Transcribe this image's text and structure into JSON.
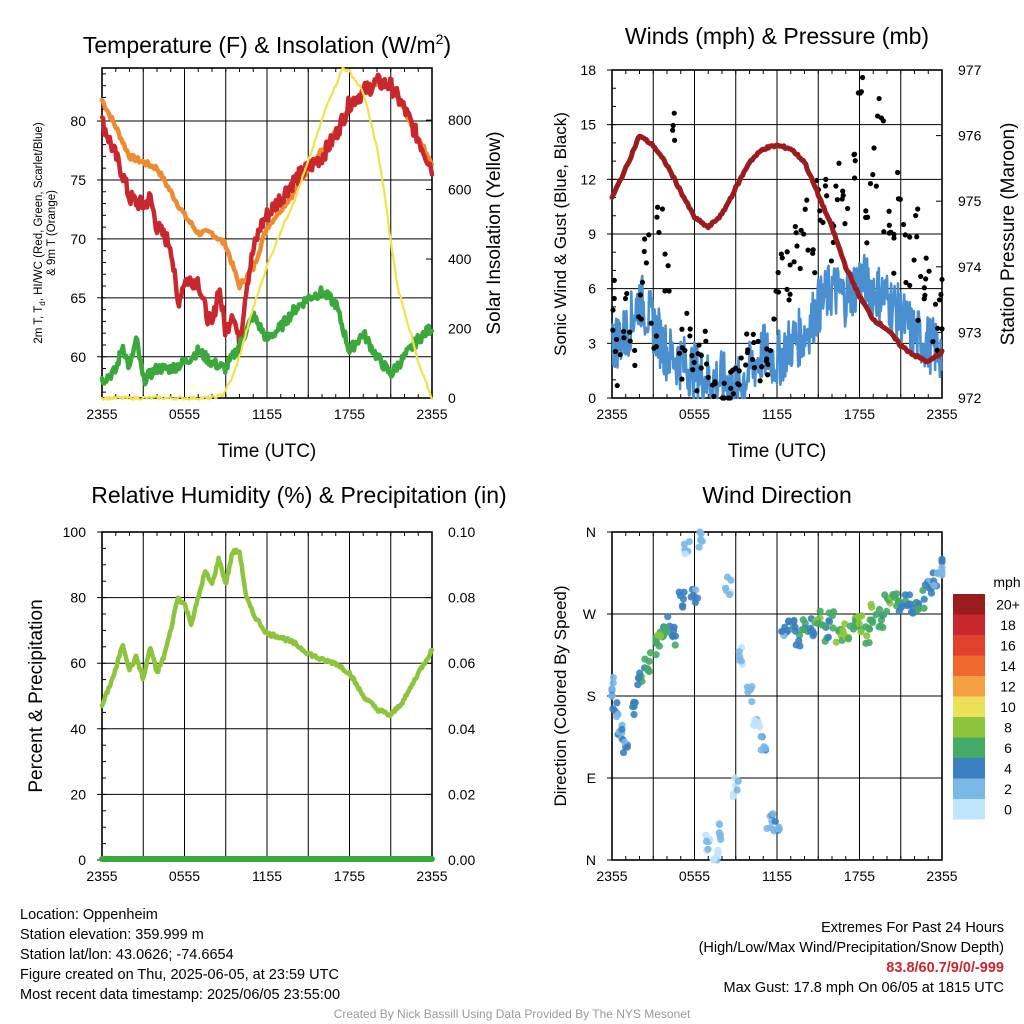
{
  "chart_data": [
    {
      "type": "line",
      "title": "Temperature (F) & Insolation (W/m",
      "title_superscript": "2",
      "title_suffix": ")",
      "xlabel": "Time (UTC)",
      "ylabel_left_lines": [
        "2m T, T",
        "d",
        ", HI/WC (Red, Green, Scarlet/Blue)",
        "& 9m T (Orange)"
      ],
      "ylabel_right": "Solar Insolation (Yellow)",
      "x_ticks": [
        "2355",
        "0555",
        "1155",
        "1755",
        "2355"
      ],
      "x_range_hours": [
        0,
        24
      ],
      "ylim_left": [
        56.5,
        84.5
      ],
      "y_ticks_left": [
        60,
        65,
        70,
        75,
        80
      ],
      "ylim_right": [
        0,
        950
      ],
      "y_ticks_right": [
        0,
        200,
        400,
        600,
        800
      ],
      "grid": true,
      "series": [
        {
          "name": "9m T",
          "color": "#f08a30",
          "axis": "left",
          "x": [
            0,
            1,
            2,
            3,
            4,
            5,
            6,
            7,
            8,
            9,
            10,
            11,
            12,
            13,
            14,
            15,
            16,
            17,
            18,
            19,
            20,
            21,
            22,
            23,
            24
          ],
          "values": [
            81.8,
            79.5,
            77.0,
            76.5,
            76.0,
            74.0,
            72.0,
            70.5,
            70.5,
            69.5,
            66.0,
            67.5,
            71.0,
            72.5,
            74.0,
            76.0,
            77.5,
            79.0,
            81.0,
            82.5,
            83.3,
            83.1,
            81.0,
            78.5,
            76.5
          ]
        },
        {
          "name": "2m T",
          "color": "#c8282d",
          "axis": "left",
          "x": [
            0,
            1,
            1.5,
            2,
            3,
            3.5,
            4,
            5,
            5.5,
            6,
            7,
            7.5,
            8,
            8.5,
            9,
            9.5,
            10,
            10.5,
            11,
            11.5,
            12,
            13,
            14,
            15,
            16,
            17,
            18,
            19,
            20,
            21,
            22,
            23,
            24
          ],
          "values": [
            80.0,
            77.0,
            75.5,
            73.5,
            72.8,
            73.5,
            71.0,
            69.5,
            64.5,
            66.5,
            66.5,
            64.0,
            62.5,
            66.0,
            62.0,
            64.0,
            61.0,
            66.0,
            69.0,
            71.0,
            72.0,
            73.5,
            75.0,
            76.0,
            77.0,
            78.8,
            81.5,
            82.5,
            83.3,
            83.0,
            81.0,
            78.5,
            76.0
          ]
        },
        {
          "name": "Dewpoint",
          "color": "#3aa83a",
          "axis": "left",
          "x": [
            0,
            1,
            1.5,
            2,
            2.5,
            3,
            4,
            5,
            6,
            7,
            8,
            9,
            10,
            11,
            12,
            13,
            14,
            15,
            16,
            17,
            18,
            19,
            20,
            21,
            22,
            23,
            24
          ],
          "values": [
            58.0,
            58.8,
            61.0,
            59.0,
            61.5,
            58.0,
            59.0,
            59.0,
            59.5,
            60.5,
            59.5,
            59.0,
            61.0,
            63.5,
            61.5,
            62.5,
            64.0,
            65.0,
            65.5,
            64.5,
            60.5,
            62.0,
            60.0,
            58.5,
            60.0,
            61.5,
            62.5
          ]
        },
        {
          "name": "Solar Insolation",
          "color": "#f3e14a",
          "axis": "right",
          "x": [
            0,
            2,
            4,
            6,
            8,
            8.8,
            9.5,
            10,
            11,
            12,
            13,
            14,
            15,
            16,
            16.5,
            17,
            17.5,
            18,
            19,
            19.5,
            20,
            20.5,
            21,
            21.5,
            22,
            22.5,
            23,
            24
          ],
          "values": [
            0,
            0,
            0,
            0,
            0,
            10,
            60,
            120,
            260,
            380,
            480,
            570,
            680,
            800,
            860,
            900,
            950,
            940,
            880,
            800,
            720,
            600,
            450,
            320,
            250,
            180,
            100,
            0
          ]
        }
      ]
    },
    {
      "type": "scatter",
      "title": "Winds (mph) & Pressure (mb)",
      "xlabel": "Time (UTC)",
      "ylabel_left": "Sonic Wind & Gust (Blue, Black)",
      "ylabel_right": "Station Pressure (Maroon)",
      "x_ticks": [
        "2355",
        "0555",
        "1155",
        "1755",
        "2355"
      ],
      "x_range_hours": [
        0,
        24
      ],
      "ylim_left": [
        0,
        18
      ],
      "y_ticks_left": [
        0,
        3,
        6,
        9,
        12,
        15,
        18
      ],
      "ylim_right": [
        972,
        977
      ],
      "y_ticks_right": [
        972,
        973,
        974,
        975,
        976,
        977
      ],
      "grid": true,
      "series": [
        {
          "name": "Sonic Wind",
          "color": "#4a90d0",
          "axis": "left",
          "x": [
            0,
            1,
            2,
            3,
            4,
            5,
            6,
            7,
            8,
            9,
            10,
            11,
            12,
            13,
            14,
            15,
            16,
            17,
            18,
            19,
            20,
            21,
            22,
            23,
            24
          ],
          "values": [
            3.0,
            3.5,
            5.5,
            4.0,
            2.5,
            2.0,
            1.5,
            1.0,
            1.0,
            0.5,
            1.5,
            2.5,
            2.0,
            3.0,
            3.5,
            5.0,
            6.0,
            5.5,
            6.5,
            6.0,
            5.5,
            4.5,
            3.5,
            3.0,
            2.5
          ]
        },
        {
          "name": "Gust",
          "color": "#000000",
          "axis": "left",
          "x": [
            0,
            0.5,
            1,
            1.5,
            2,
            2.5,
            3,
            3.5,
            4,
            4.5,
            5,
            5.5,
            6,
            6.5,
            7,
            7.5,
            8,
            8.5,
            9,
            9.5,
            10,
            10.5,
            11,
            11.5,
            12,
            12.5,
            13,
            13.5,
            14,
            14.5,
            15,
            15.5,
            16,
            16.5,
            17,
            17.5,
            18,
            18.5,
            19,
            19.5,
            20,
            20.5,
            21,
            21.5,
            22,
            22.5,
            23,
            23.5,
            24
          ],
          "values": [
            6.2,
            3.0,
            5.5,
            4.0,
            6.0,
            9.5,
            5.0,
            10.0,
            7.5,
            15.5,
            3.5,
            5.0,
            2.0,
            2.5,
            3.5,
            2.0,
            1.5,
            1.0,
            2.5,
            2.5,
            3.5,
            3.0,
            2.5,
            3.5,
            6.5,
            8.0,
            7.0,
            9.0,
            10.5,
            8.5,
            12.0,
            11.5,
            9.5,
            13.0,
            11.5,
            14.5,
            17.8,
            10.5,
            13.5,
            16.0,
            11.5,
            9.0,
            12.0,
            8.5,
            10.0,
            6.5,
            7.5,
            5.0,
            6.2
          ]
        },
        {
          "name": "Station Pressure",
          "color": "#9b1c1c",
          "axis": "right",
          "x": [
            0,
            1,
            2,
            3,
            4,
            5,
            6,
            7,
            8,
            9,
            10,
            11,
            12,
            13,
            14,
            15,
            16,
            17,
            18,
            19,
            20,
            21,
            22,
            23,
            24
          ],
          "values": [
            975.05,
            975.5,
            976.0,
            975.85,
            975.55,
            975.15,
            974.75,
            974.6,
            974.8,
            975.2,
            975.6,
            975.8,
            975.85,
            975.8,
            975.6,
            975.1,
            974.6,
            974.0,
            973.55,
            973.2,
            973.05,
            972.8,
            972.65,
            972.55,
            972.7
          ]
        }
      ]
    },
    {
      "type": "line",
      "title": "Relative Humidity (%) & Precipitation (in)",
      "ylabel_left": "Percent & Precipitation",
      "x_ticks": [
        "2355",
        "0555",
        "1155",
        "1755",
        "2355"
      ],
      "x_range_hours": [
        0,
        24
      ],
      "ylim_left": [
        0,
        100
      ],
      "y_ticks_left": [
        0,
        20,
        40,
        60,
        80,
        100
      ],
      "ylim_right": [
        0,
        0.1
      ],
      "y_ticks_right": [
        "0.00",
        "0.02",
        "0.04",
        "0.06",
        "0.08",
        "0.10"
      ],
      "grid": true,
      "series": [
        {
          "name": "Relative Humidity",
          "color": "#8cc43c",
          "axis": "left",
          "x": [
            0,
            1,
            1.5,
            2,
            2.5,
            3,
            3.5,
            4,
            4.5,
            5,
            5.5,
            6,
            6.5,
            7,
            7.5,
            8,
            8.5,
            9,
            9.5,
            10,
            10.5,
            11,
            12,
            13,
            14,
            15,
            16,
            17,
            18,
            19,
            20,
            21,
            22,
            23,
            24
          ],
          "values": [
            47,
            58,
            66,
            58,
            62,
            55,
            65,
            57,
            62,
            70,
            80,
            78,
            72,
            80,
            88,
            84,
            92,
            84,
            94,
            94,
            80,
            75,
            69,
            68,
            66,
            63,
            61,
            60,
            57,
            50,
            46,
            44,
            49,
            57,
            64
          ]
        },
        {
          "name": "Precipitation",
          "color": "#3aa83a",
          "axis": "right",
          "x": [
            0,
            24
          ],
          "values": [
            0,
            0
          ]
        }
      ]
    },
    {
      "type": "scatter",
      "title": "Wind Direction",
      "ylabel_left": "Direction (Colored By Speed)",
      "x_ticks": [
        "2355",
        "0555",
        "1155",
        "1755",
        "2355"
      ],
      "x_range_hours": [
        0,
        24
      ],
      "ylim_left": [
        0,
        360
      ],
      "y_ticks_left": [
        "N",
        "E",
        "S",
        "W",
        "N"
      ],
      "grid": true,
      "legend": {
        "title": "mph",
        "labels": [
          "20+",
          "18",
          "16",
          "14",
          "12",
          "10",
          "8",
          "6",
          "4",
          "2",
          "0"
        ],
        "colors": [
          "#9b1c1c",
          "#c8282d",
          "#e0402c",
          "#f06a30",
          "#f5a040",
          "#ece05a",
          "#8cc43c",
          "#44aa66",
          "#3a80c0",
          "#7ab8e8",
          "#c0e4f8"
        ],
        "placement": "right"
      },
      "series": [
        {
          "name": "Direction",
          "x": [
            0,
            0.3,
            0.6,
            1.0,
            1.5,
            2.0,
            2.5,
            3.0,
            3.5,
            4.0,
            4.5,
            5.0,
            5.5,
            6.0,
            6.5,
            7.0,
            7.5,
            8.0,
            8.5,
            9.0,
            9.5,
            10.0,
            10.5,
            11.0,
            11.5,
            12.0,
            12.5,
            13.0,
            13.5,
            14.0,
            14.5,
            15.0,
            15.5,
            16.0,
            16.5,
            17.0,
            17.5,
            18.0,
            18.5,
            19.0,
            19.5,
            20.0,
            20.5,
            21.0,
            21.5,
            22.0,
            22.5,
            23.0,
            23.5,
            24.0
          ],
          "values": [
            190,
            165,
            140,
            125,
            170,
            200,
            215,
            235,
            245,
            260,
            245,
            285,
            345,
            290,
            350,
            20,
            5,
            30,
            300,
            80,
            225,
            180,
            150,
            130,
            45,
            40,
            250,
            255,
            245,
            260,
            255,
            270,
            250,
            265,
            245,
            250,
            255,
            260,
            245,
            270,
            265,
            280,
            285,
            280,
            290,
            275,
            285,
            300,
            310,
            320
          ],
          "speeds": [
            3,
            3,
            2,
            3,
            4,
            4,
            5,
            5,
            6,
            5,
            4,
            4,
            1,
            3,
            1,
            1,
            0,
            1,
            1,
            0,
            1,
            1,
            0,
            2,
            2,
            2,
            3,
            4,
            4,
            5,
            4,
            6,
            5,
            5,
            6,
            7,
            6,
            7,
            6,
            6,
            5,
            6,
            6,
            5,
            4,
            4,
            5,
            3,
            3,
            2
          ]
        }
      ]
    }
  ],
  "info": {
    "location": "Location: Oppenheim",
    "elevation": "Station elevation: 359.999 m",
    "latlon": "Station lat/lon: 43.0626; -74.6654",
    "created": "Figure created on Thu, 2025-06-05, at 23:59 UTC",
    "timestamp": "Most recent data timestamp: 2025/06/05 23:55:00"
  },
  "extremes": {
    "heading": "Extremes For Past 24 Hours",
    "subheading": "(High/Low/Max Wind/Precipitation/Snow Depth)",
    "values": "83.8/60.7/9/0/-999",
    "max_gust": "Max Gust: 17.8 mph On 06/05 at 1815 UTC"
  },
  "credit": "Created By Nick Bassill Using Data Provided By The NYS Mesonet"
}
